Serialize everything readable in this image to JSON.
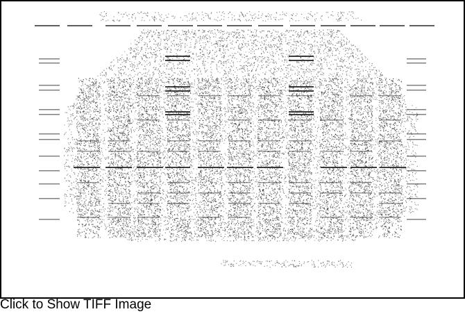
{
  "image": {
    "link_text": "Click to Show TIFF Image",
    "frame_color": "#000000",
    "ink_color": "#1a1a1a",
    "background_color": "#ffffff"
  }
}
